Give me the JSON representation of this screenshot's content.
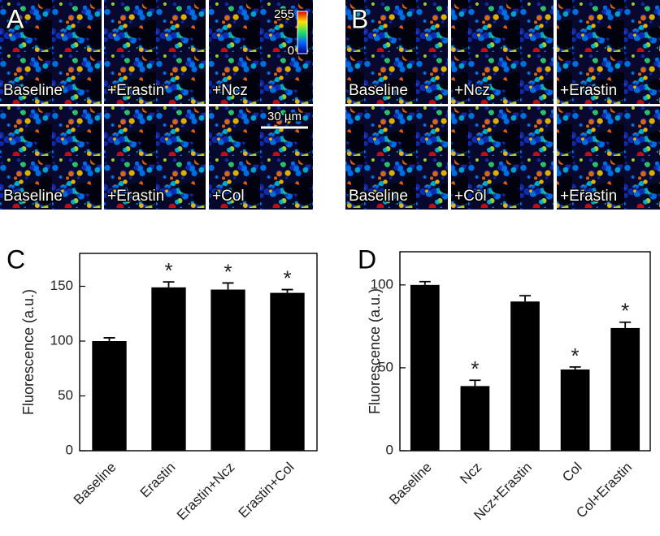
{
  "panels": [
    {
      "letter": "A",
      "images": [
        [
          "Baseline",
          "+Erastin",
          "+Ncz"
        ],
        [
          "Baseline",
          "+Erastin",
          "+Col"
        ]
      ],
      "colorbar": {
        "max": "255",
        "min": "0"
      },
      "scale_bar": "30 µm"
    },
    {
      "letter": "B",
      "images": [
        [
          "Baseline",
          "+Ncz",
          "+Erastin"
        ],
        [
          "Baseline",
          "+Col",
          "+Erastin"
        ]
      ]
    }
  ],
  "chart_data": [
    {
      "type": "bar",
      "panel": "C",
      "ylabel": "Fluorescence (a.u.)",
      "categories": [
        "Baseline",
        "Erastin",
        "Erastin+Ncz",
        "Erastin+Col"
      ],
      "values": [
        100,
        149,
        147,
        144
      ],
      "errors": [
        3,
        5,
        6,
        3
      ],
      "significance": [
        null,
        "*",
        "*",
        "*"
      ],
      "color": "#000000",
      "ylim": [
        0,
        180
      ],
      "yticks": [
        0,
        50,
        100,
        150
      ]
    },
    {
      "type": "bar",
      "panel": "D",
      "ylabel": "Fluorescence (a.u.)",
      "categories": [
        "Baseline",
        "Ncz",
        "Ncz+Erastin",
        "Col",
        "Col+Erastin"
      ],
      "values": [
        100,
        39,
        90,
        49,
        74
      ],
      "errors": [
        2,
        3.5,
        3.5,
        1.5,
        3.5
      ],
      "significance": [
        null,
        "*",
        null,
        "*",
        "*"
      ],
      "color": "#000000",
      "ylim": [
        0,
        120
      ],
      "yticks": [
        0,
        50,
        100
      ]
    }
  ]
}
